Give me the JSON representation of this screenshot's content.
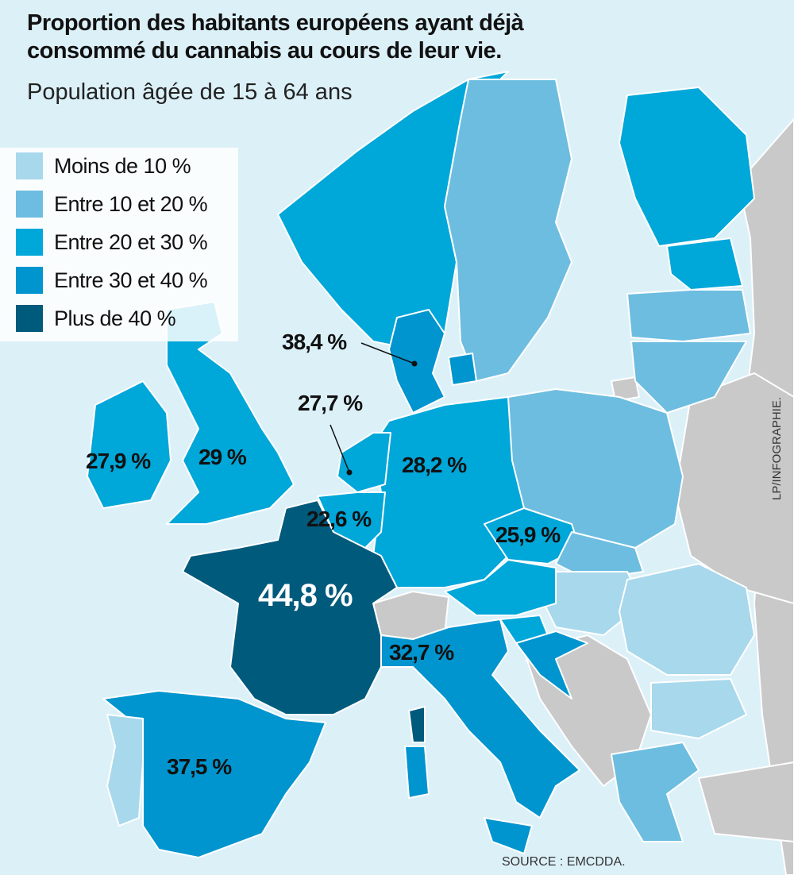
{
  "header": {
    "title_line1": "Proportion des habitants européens ayant déjà",
    "title_line2": "consommé du cannabis au cours de leur vie.",
    "subtitle": "Population âgée de 15 à 64 ans"
  },
  "legend": [
    {
      "label": "Moins de 10 %",
      "color": "#a8d8ec"
    },
    {
      "label": "Entre 10 et 20 %",
      "color": "#6dbde0"
    },
    {
      "label": "Entre 20 et 30 %",
      "color": "#00a7d9"
    },
    {
      "label": "Entre 30 et 40 %",
      "color": "#0095cf"
    },
    {
      "label": "Plus de 40 %",
      "color": "#005a7c"
    }
  ],
  "labels": {
    "ireland": "27,9 %",
    "uk": "29 %",
    "france": "44,8 %",
    "spain": "37,5 %",
    "belgium": "22,6 %",
    "netherlands": "27,7 %",
    "denmark": "38,4 %",
    "germany": "28,2 %",
    "czechia": "25,9 %",
    "italy": "32,7 %"
  },
  "source": "SOURCE : EMCDDA.",
  "credit": "LP/INFOGRAPHIE.",
  "colors": {
    "sea": "#dcf0f8",
    "non_member": "#c9c9c9"
  }
}
